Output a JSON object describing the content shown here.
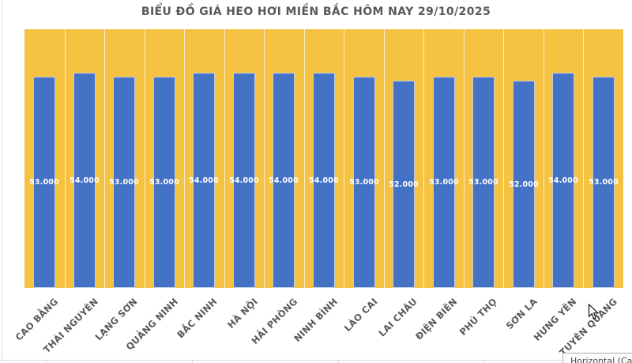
{
  "chart_data": {
    "type": "bar",
    "title": "BIỂU ĐỒ GIÁ HEO HƠI MIỀN BẮC HÔM NAY 29/10/2025",
    "categories": [
      "CAO BẰNG",
      "THÁI NGUYÊN",
      "LẠNG SƠN",
      "QUẢNG NINH",
      "BẮC NINH",
      "HÀ NỘI",
      "HẢI PHÒNG",
      "NINH BÌNH",
      "LÀO CAI",
      "LAI CHÂU",
      "ĐIỆN BIÊN",
      "PHÚ THỌ",
      "SƠN LA",
      "HƯNG YÊN",
      "TUYÊN QUANG"
    ],
    "values": [
      53000,
      54000,
      53000,
      53000,
      54000,
      54000,
      54000,
      54000,
      53000,
      52000,
      53000,
      53000,
      52000,
      54000,
      53000
    ],
    "value_labels": [
      "53.000",
      "54.000",
      "53.000",
      "53.000",
      "54.000",
      "54.000",
      "54.000",
      "54.000",
      "53.000",
      "52.000",
      "53.000",
      "53.000",
      "52.000",
      "54.000",
      "53.000"
    ],
    "xlabel": "",
    "ylabel": "",
    "ylim": [
      0,
      65000
    ],
    "grid": true,
    "legend_position": "none",
    "value_labels_position": "center",
    "bar_color": "#4472C4",
    "plot_background": "#F5C242",
    "axis_label_color": "#595959",
    "value_label_color": "#FFFFFF"
  },
  "tooltip": {
    "text": "Horizontal (Cat"
  }
}
